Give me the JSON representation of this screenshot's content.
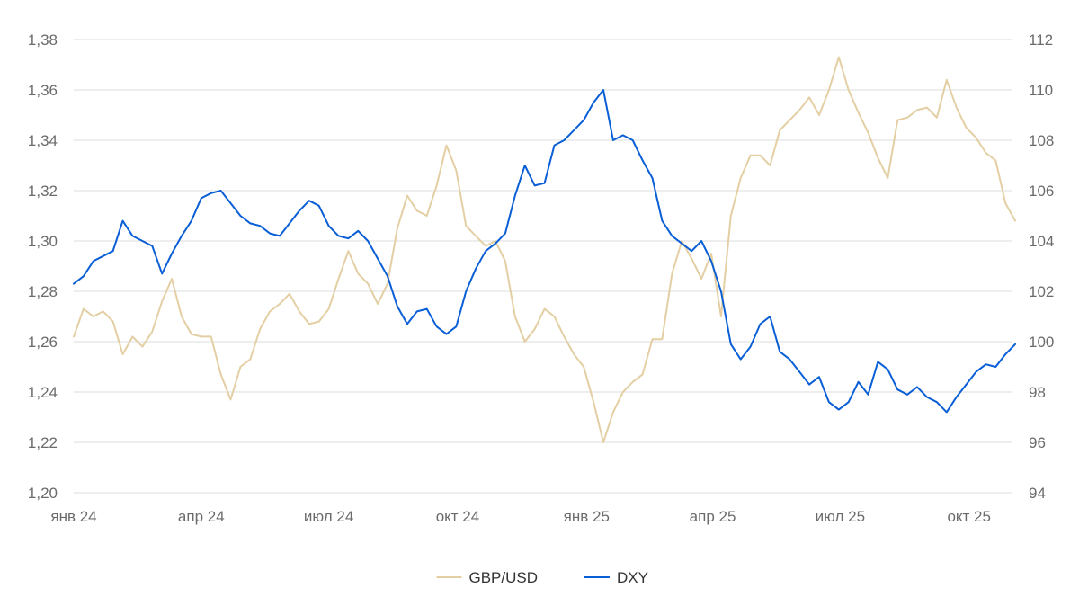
{
  "chart_data": {
    "type": "line",
    "title": "",
    "xlabel": "",
    "ylabel": "",
    "grid": true,
    "legend_position": "bottom",
    "x_tick_labels": [
      "янв 24",
      "апр 24",
      "июл 24",
      "окт 24",
      "янв 25",
      "апр 25",
      "июл 25",
      "окт 25"
    ],
    "x_tick_dates": [
      "2024-01",
      "2024-04",
      "2024-07",
      "2024-10",
      "2025-01",
      "2025-04",
      "2025-07",
      "2025-10"
    ],
    "x_range": [
      "2024-01",
      "2025-11"
    ],
    "y_left": {
      "range": [
        1.2,
        1.38
      ],
      "tick_labels": [
        "1,20",
        "1,22",
        "1,24",
        "1,26",
        "1,28",
        "1,30",
        "1,32",
        "1,34",
        "1,36",
        "1,38"
      ]
    },
    "y_right": {
      "range": [
        94,
        112
      ],
      "tick_labels": [
        "94",
        "96",
        "98",
        "100",
        "102",
        "104",
        "106",
        "108",
        "110",
        "112"
      ]
    },
    "series": [
      {
        "name": "GBP/USD",
        "axis": "left",
        "color": "#e3cfa3",
        "x": [
          "2024-01-01",
          "2024-01-08",
          "2024-01-15",
          "2024-01-22",
          "2024-01-29",
          "2024-02-05",
          "2024-02-12",
          "2024-02-19",
          "2024-02-26",
          "2024-03-04",
          "2024-03-11",
          "2024-03-18",
          "2024-03-25",
          "2024-04-01",
          "2024-04-08",
          "2024-04-15",
          "2024-04-22",
          "2024-04-29",
          "2024-05-06",
          "2024-05-13",
          "2024-05-20",
          "2024-05-27",
          "2024-06-03",
          "2024-06-10",
          "2024-06-17",
          "2024-06-24",
          "2024-07-01",
          "2024-07-08",
          "2024-07-15",
          "2024-07-22",
          "2024-07-29",
          "2024-08-05",
          "2024-08-12",
          "2024-08-19",
          "2024-08-26",
          "2024-09-02",
          "2024-09-09",
          "2024-09-16",
          "2024-09-23",
          "2024-09-30",
          "2024-10-07",
          "2024-10-14",
          "2024-10-21",
          "2024-10-28",
          "2024-11-04",
          "2024-11-11",
          "2024-11-18",
          "2024-11-25",
          "2024-12-02",
          "2024-12-09",
          "2024-12-16",
          "2024-12-23",
          "2024-12-30",
          "2025-01-06",
          "2025-01-13",
          "2025-01-20",
          "2025-01-27",
          "2025-02-03",
          "2025-02-10",
          "2025-02-17",
          "2025-02-24",
          "2025-03-03",
          "2025-03-10",
          "2025-03-17",
          "2025-03-24",
          "2025-03-31",
          "2025-04-07",
          "2025-04-14",
          "2025-04-21",
          "2025-04-28",
          "2025-05-05",
          "2025-05-12",
          "2025-05-19",
          "2025-05-26",
          "2025-06-02",
          "2025-06-09",
          "2025-06-16",
          "2025-06-23",
          "2025-06-30",
          "2025-07-07",
          "2025-07-14",
          "2025-07-21",
          "2025-07-28",
          "2025-08-04",
          "2025-08-11",
          "2025-08-18",
          "2025-08-25",
          "2025-09-01",
          "2025-09-08",
          "2025-09-15",
          "2025-09-22",
          "2025-09-29",
          "2025-10-06",
          "2025-10-13",
          "2025-10-20",
          "2025-10-27",
          "2025-11-03"
        ],
        "values": [
          1.262,
          1.273,
          1.27,
          1.272,
          1.268,
          1.255,
          1.262,
          1.258,
          1.264,
          1.276,
          1.285,
          1.27,
          1.263,
          1.262,
          1.262,
          1.247,
          1.237,
          1.25,
          1.253,
          1.265,
          1.272,
          1.275,
          1.279,
          1.272,
          1.267,
          1.268,
          1.273,
          1.285,
          1.296,
          1.287,
          1.283,
          1.275,
          1.283,
          1.305,
          1.318,
          1.312,
          1.31,
          1.322,
          1.338,
          1.328,
          1.306,
          1.302,
          1.298,
          1.3,
          1.292,
          1.27,
          1.26,
          1.265,
          1.273,
          1.27,
          1.262,
          1.255,
          1.25,
          1.236,
          1.22,
          1.232,
          1.24,
          1.244,
          1.247,
          1.261,
          1.261,
          1.287,
          1.3,
          1.293,
          1.285,
          1.295,
          1.27,
          1.31,
          1.325,
          1.334,
          1.334,
          1.33,
          1.344,
          1.348,
          1.352,
          1.357,
          1.35,
          1.36,
          1.373,
          1.36,
          1.351,
          1.343,
          1.333,
          1.325,
          1.348,
          1.349,
          1.352,
          1.353,
          1.349,
          1.364,
          1.353,
          1.345,
          1.341,
          1.335,
          1.332,
          1.315,
          1.308
        ]
      },
      {
        "name": "DXY",
        "axis": "right",
        "color": "#0a5fd6",
        "x": [
          "2024-01-01",
          "2024-01-08",
          "2024-01-15",
          "2024-01-22",
          "2024-01-29",
          "2024-02-05",
          "2024-02-12",
          "2024-02-19",
          "2024-02-26",
          "2024-03-04",
          "2024-03-11",
          "2024-03-18",
          "2024-03-25",
          "2024-04-01",
          "2024-04-08",
          "2024-04-15",
          "2024-04-22",
          "2024-04-29",
          "2024-05-06",
          "2024-05-13",
          "2024-05-20",
          "2024-05-27",
          "2024-06-03",
          "2024-06-10",
          "2024-06-17",
          "2024-06-24",
          "2024-07-01",
          "2024-07-08",
          "2024-07-15",
          "2024-07-22",
          "2024-07-29",
          "2024-08-05",
          "2024-08-12",
          "2024-08-19",
          "2024-08-26",
          "2024-09-02",
          "2024-09-09",
          "2024-09-16",
          "2024-09-23",
          "2024-09-30",
          "2024-10-07",
          "2024-10-14",
          "2024-10-21",
          "2024-10-28",
          "2024-11-04",
          "2024-11-11",
          "2024-11-18",
          "2024-11-25",
          "2024-12-02",
          "2024-12-09",
          "2024-12-16",
          "2024-12-23",
          "2024-12-30",
          "2025-01-06",
          "2025-01-13",
          "2025-01-20",
          "2025-01-27",
          "2025-02-03",
          "2025-02-10",
          "2025-02-17",
          "2025-02-24",
          "2025-03-03",
          "2025-03-10",
          "2025-03-17",
          "2025-03-24",
          "2025-03-31",
          "2025-04-07",
          "2025-04-14",
          "2025-04-21",
          "2025-04-28",
          "2025-05-05",
          "2025-05-12",
          "2025-05-19",
          "2025-05-26",
          "2025-06-02",
          "2025-06-09",
          "2025-06-16",
          "2025-06-23",
          "2025-06-30",
          "2025-07-07",
          "2025-07-14",
          "2025-07-21",
          "2025-07-28",
          "2025-08-04",
          "2025-08-11",
          "2025-08-18",
          "2025-08-25",
          "2025-09-01",
          "2025-09-08",
          "2025-09-15",
          "2025-09-22",
          "2025-09-29",
          "2025-10-06",
          "2025-10-13",
          "2025-10-20",
          "2025-10-27",
          "2025-11-03"
        ],
        "values": [
          102.3,
          102.6,
          103.2,
          103.4,
          103.6,
          104.8,
          104.2,
          104.0,
          103.8,
          102.7,
          103.5,
          104.2,
          104.8,
          105.7,
          105.9,
          106.0,
          105.5,
          105.0,
          104.7,
          104.6,
          104.3,
          104.2,
          104.7,
          105.2,
          105.6,
          105.4,
          104.6,
          104.2,
          104.1,
          104.4,
          104.0,
          103.3,
          102.6,
          101.4,
          100.7,
          101.2,
          101.3,
          100.6,
          100.3,
          100.6,
          102.0,
          102.9,
          103.6,
          103.9,
          104.3,
          105.8,
          107.0,
          106.2,
          106.3,
          107.8,
          108.0,
          108.4,
          108.8,
          109.5,
          110.0,
          108.0,
          108.2,
          108.0,
          107.2,
          106.5,
          104.8,
          104.2,
          103.9,
          103.6,
          104.0,
          103.2,
          102.0,
          99.9,
          99.3,
          99.8,
          100.7,
          101.0,
          99.6,
          99.3,
          98.8,
          98.3,
          98.6,
          97.6,
          97.3,
          97.6,
          98.4,
          97.9,
          99.2,
          98.9,
          98.1,
          97.9,
          98.2,
          97.8,
          97.6,
          97.2,
          97.8,
          98.3,
          98.8,
          99.1,
          99.0,
          99.5,
          99.9
        ]
      }
    ]
  }
}
